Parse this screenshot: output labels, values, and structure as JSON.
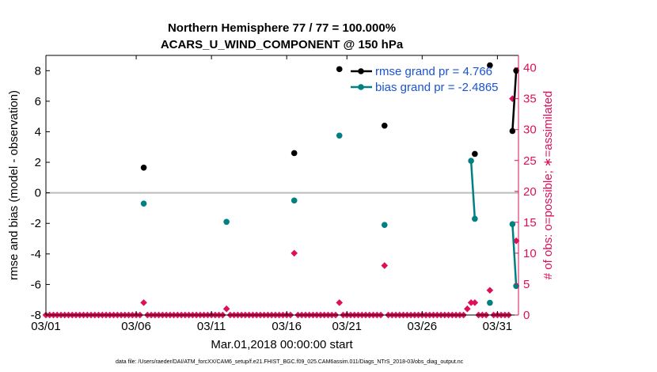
{
  "title": {
    "line1": "Northern Hemisphere 77 / 77 = 100.000%",
    "line2": "ACARS_U_WIND_COMPONENT @ 150 hPa"
  },
  "footnote": "data file: /Users/raeder/DAI/ATM_forcXX/CAM6_setup/f.e21.FHIST_BGC.f09_025.CAM6assim.011/Diags_NTrS_2018-03/obs_diag_output.nc",
  "colors": {
    "rmse": "#000000",
    "bias": "#008080",
    "obs": "#dd0f5a",
    "zero_line": "#bbbbbb"
  },
  "chart_data": {
    "type": "line",
    "title": "Northern Hemisphere 77 / 77 = 100.000%",
    "subtitle": "ACARS_U_WIND_COMPONENT @ 150 hPa",
    "xlabel": "Mar.01,2018 00:00:00 start",
    "ylabel": "rmse and bias (model - observation)",
    "y2label": "# of obs: o=possible; ∗=assimilated",
    "xlim": [
      0,
      31.4
    ],
    "ylim": [
      -8,
      9
    ],
    "y2lim": [
      0,
      42
    ],
    "x_ticks": [
      0,
      6,
      11,
      16,
      20,
      25,
      30
    ],
    "x_tick_labels": [
      "03/01",
      "03/06",
      "03/11",
      "03/16",
      "03/21",
      "03/26",
      "03/31"
    ],
    "y_ticks": [
      -8,
      -6,
      -4,
      -2,
      0,
      2,
      4,
      6,
      8
    ],
    "y_tick_labels": [
      "-8",
      "-6",
      "-4",
      "-2",
      "0",
      "2",
      "4",
      "6",
      "8"
    ],
    "y2_ticks": [
      0,
      5,
      10,
      15,
      20,
      25,
      30,
      35,
      40
    ],
    "y2_tick_labels": [
      "0",
      "5",
      "10",
      "15",
      "20",
      "25",
      "30",
      "35",
      "40"
    ],
    "grid": false,
    "legend_position": "top-right",
    "series": [
      {
        "name": "rmse grand pr = 4.766",
        "axis": "left",
        "points": [
          [
            6.5,
            1.65
          ],
          [
            16.5,
            2.6
          ],
          [
            19.5,
            8.1
          ],
          [
            22.5,
            4.4
          ],
          [
            28.5,
            2.55
          ],
          [
            29.5,
            8.35
          ],
          [
            31.0,
            4.05
          ],
          [
            31.25,
            8.0
          ]
        ],
        "segments": [
          [
            31.0,
            31.25
          ]
        ]
      },
      {
        "name": "bias grand pr = -2.4865",
        "axis": "left",
        "points": [
          [
            6.5,
            -0.7
          ],
          [
            12.0,
            -1.9
          ],
          [
            16.5,
            -0.5
          ],
          [
            19.5,
            3.75
          ],
          [
            22.5,
            -2.1
          ],
          [
            28.25,
            2.1
          ],
          [
            28.5,
            -1.7
          ],
          [
            29.5,
            -7.2
          ],
          [
            31.0,
            -2.05
          ],
          [
            31.25,
            -6.1
          ]
        ],
        "segments": [
          [
            28.25,
            28.5
          ],
          [
            31.0,
            31.25
          ]
        ]
      },
      {
        "name": "# of obs",
        "axis": "right",
        "x": [
          6.5,
          12.0,
          16.5,
          19.5,
          22.5,
          28.0,
          28.25,
          28.5,
          29.5,
          31.0,
          31.25
        ],
        "values": [
          2,
          1,
          10,
          2,
          8,
          1,
          2,
          2,
          4,
          35,
          12
        ]
      }
    ]
  }
}
